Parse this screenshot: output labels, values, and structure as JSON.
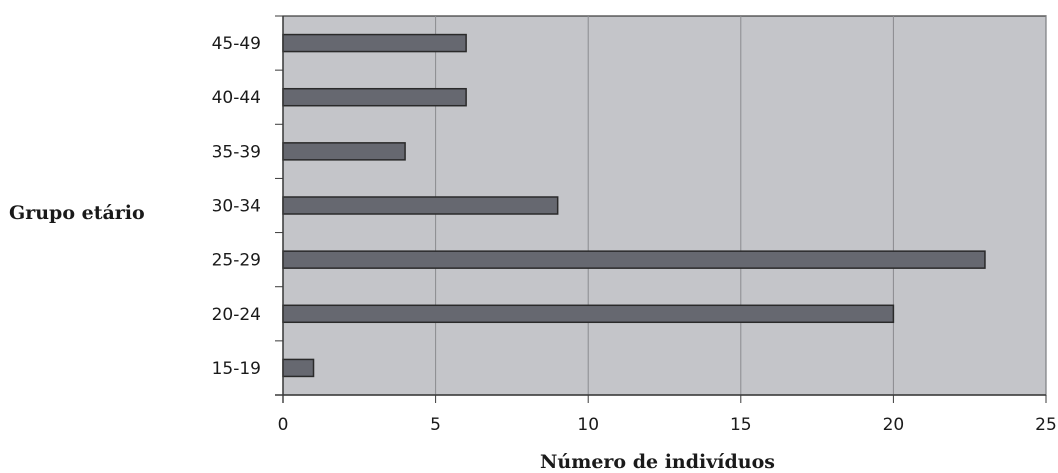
{
  "chart_data": {
    "type": "bar",
    "orientation": "horizontal",
    "categories": [
      "15-19",
      "20-24",
      "25-29",
      "30-34",
      "35-39",
      "40-44",
      "45-49"
    ],
    "values": [
      1,
      20,
      23,
      9,
      4,
      6,
      6
    ],
    "xlabel": "Número de indivíduos",
    "ylabel": "Grupo etário",
    "xlim": [
      0,
      25
    ],
    "xticks": [
      "0",
      "5",
      "10",
      "15",
      "20",
      "25"
    ],
    "grid": "vertical",
    "colors": {
      "bar_fill": "#666870",
      "bar_stroke": "#2a2a2a",
      "plot_background": "#c4c5c9",
      "grid_line": "#8a8b8f",
      "axis_line": "#3a3a3a"
    }
  }
}
